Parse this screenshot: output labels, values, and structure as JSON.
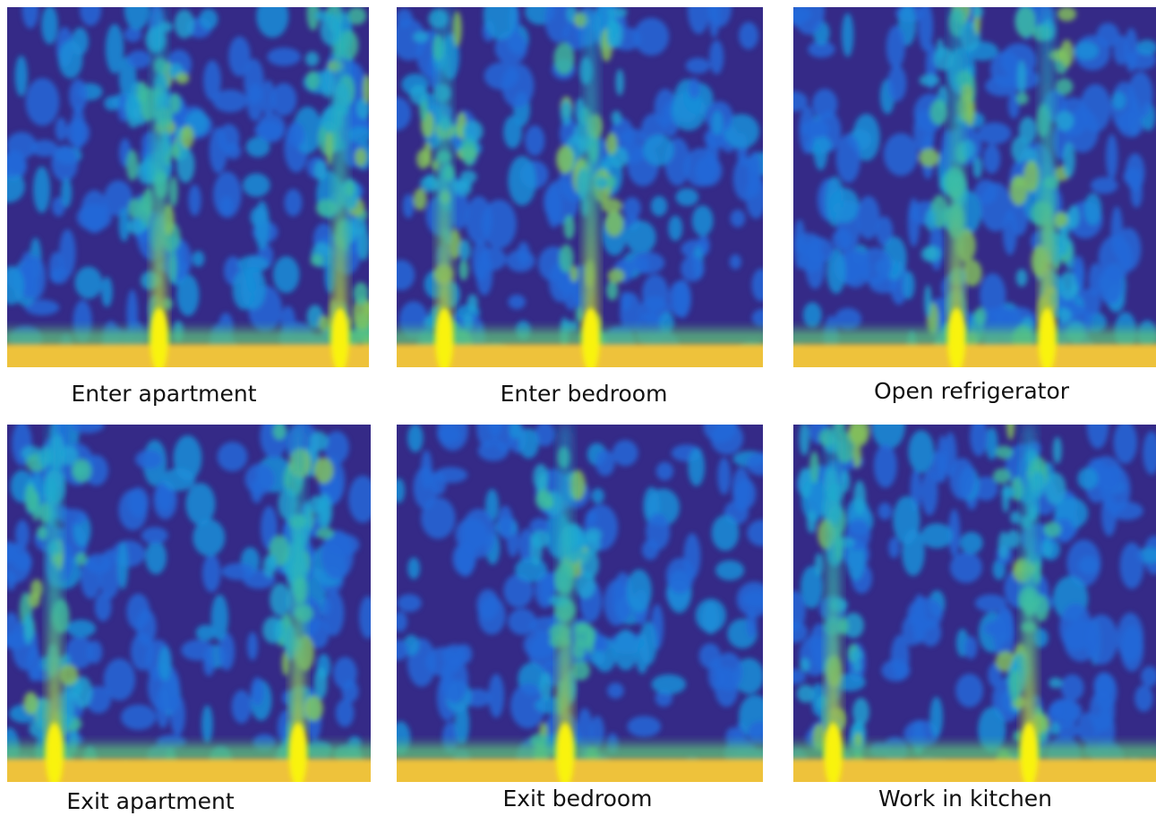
{
  "panels": [
    {
      "caption": "Enter apartment"
    },
    {
      "caption": "Enter bedroom"
    },
    {
      "caption": "Open refrigerator"
    },
    {
      "caption": "Exit apartment"
    },
    {
      "caption": "Exit bedroom"
    },
    {
      "caption": "Work in kitchen"
    }
  ]
}
